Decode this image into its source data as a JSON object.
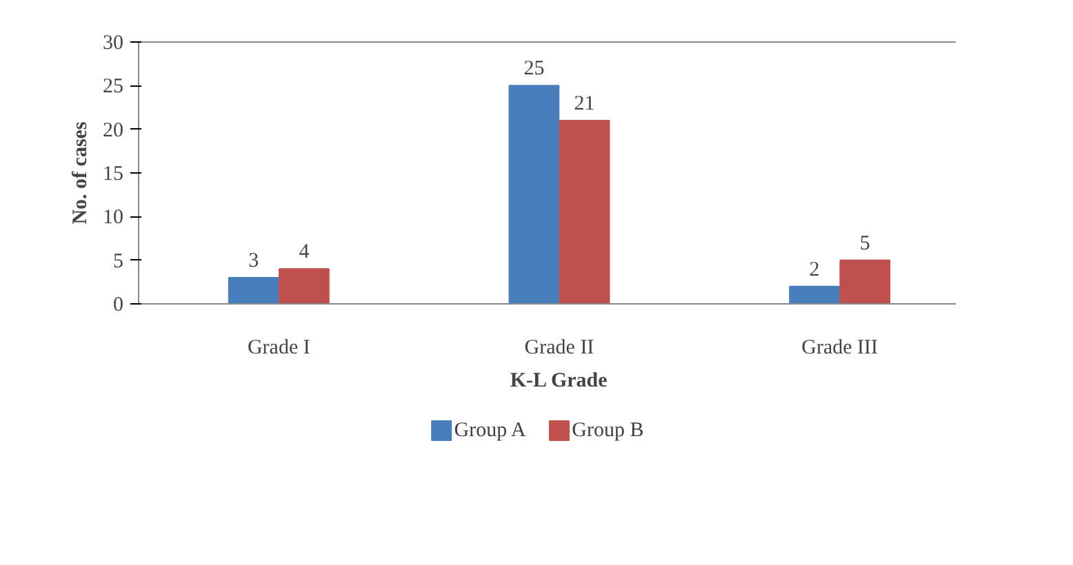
{
  "chart_data": {
    "type": "bar",
    "xlabel": "K-L Grade",
    "ylabel": "No. of cases",
    "categories": [
      "Grade I",
      "Grade II",
      "Grade III"
    ],
    "series": [
      {
        "name": "Group A",
        "color": "#4a7ebb",
        "values": [
          3,
          25,
          2
        ]
      },
      {
        "name": "Group B",
        "color": "#c0504d",
        "values": [
          4,
          21,
          5
        ]
      }
    ],
    "ylim": [
      0,
      30
    ],
    "yticks": [
      0,
      5,
      10,
      15,
      20,
      25,
      30
    ],
    "grid": false,
    "legend": "bottom",
    "data_labels": true
  }
}
